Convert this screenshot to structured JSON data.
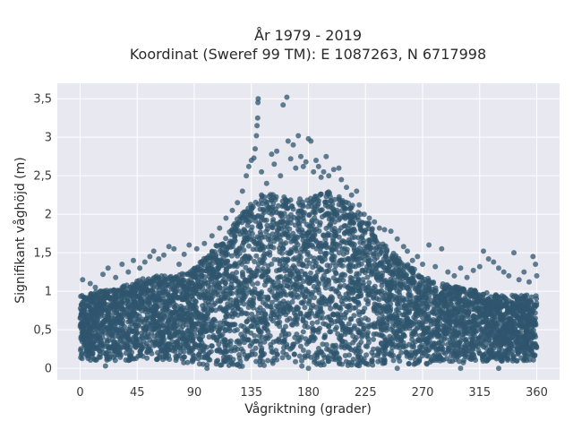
{
  "chart_data": {
    "type": "scatter",
    "title_line1": "År 1979 - 2019",
    "title_line2": "Koordinat (Sweref 99 TM): E 1087263, N 6717998",
    "xlabel": "Vågriktning (grader)",
    "ylabel": "Signifikant våghöjd (m)",
    "xlim": [
      -18,
      378
    ],
    "ylim": [
      -0.15,
      3.7
    ],
    "xticks": [
      0,
      45,
      90,
      135,
      180,
      225,
      270,
      315,
      360
    ],
    "xtick_labels": [
      "0",
      "45",
      "90",
      "135",
      "180",
      "225",
      "270",
      "315",
      "360"
    ],
    "yticks": [
      0,
      0.5,
      1,
      1.5,
      2,
      2.5,
      3,
      3.5
    ],
    "ytick_labels": [
      "0",
      "0,5",
      "1",
      "1,5",
      "2",
      "2,5",
      "3",
      "3,5"
    ],
    "grid": true,
    "legend": "none",
    "marker_color": "#2f566d",
    "plot_background": "#e8e8f0",
    "envelope": {
      "x": [
        0,
        15,
        30,
        45,
        60,
        75,
        90,
        105,
        120,
        135,
        150,
        165,
        180,
        195,
        210,
        225,
        240,
        255,
        270,
        285,
        300,
        315,
        330,
        345,
        360
      ],
      "upper": [
        0.95,
        1.0,
        1.05,
        1.15,
        1.2,
        1.2,
        1.3,
        1.55,
        1.85,
        2.2,
        2.3,
        2.2,
        2.2,
        2.3,
        2.2,
        1.95,
        1.6,
        1.4,
        1.2,
        1.1,
        1.05,
        1.0,
        0.95,
        0.95,
        0.95
      ],
      "lower": [
        0.1,
        0.1,
        0.1,
        0.1,
        0.1,
        0.08,
        0.05,
        0.02,
        0.02,
        0.02,
        0.02,
        0.02,
        0.02,
        0.02,
        0.02,
        0.03,
        0.05,
        0.05,
        0.05,
        0.06,
        0.07,
        0.08,
        0.08,
        0.09,
        0.1
      ]
    },
    "points": [
      [
        2,
        1.15
      ],
      [
        8,
        1.1
      ],
      [
        12,
        1.05
      ],
      [
        18,
        1.22
      ],
      [
        22,
        1.3
      ],
      [
        28,
        1.18
      ],
      [
        33,
        1.35
      ],
      [
        38,
        1.25
      ],
      [
        42,
        1.4
      ],
      [
        47,
        1.3
      ],
      [
        51,
        1.38
      ],
      [
        55,
        1.45
      ],
      [
        58,
        1.52
      ],
      [
        62,
        1.42
      ],
      [
        66,
        1.47
      ],
      [
        70,
        1.58
      ],
      [
        74,
        1.55
      ],
      [
        78,
        1.35
      ],
      [
        82,
        1.48
      ],
      [
        86,
        1.6
      ],
      [
        92,
        1.55
      ],
      [
        98,
        1.62
      ],
      [
        104,
        1.72
      ],
      [
        110,
        1.82
      ],
      [
        115,
        1.95
      ],
      [
        120,
        2.05
      ],
      [
        124,
        2.15
      ],
      [
        128,
        2.3
      ],
      [
        131,
        2.5
      ],
      [
        133,
        2.62
      ],
      [
        135,
        2.7
      ],
      [
        137,
        2.73
      ],
      [
        138,
        2.85
      ],
      [
        139,
        3.02
      ],
      [
        139.5,
        3.15
      ],
      [
        140,
        3.25
      ],
      [
        140.2,
        3.45
      ],
      [
        140.4,
        3.5
      ],
      [
        143,
        2.55
      ],
      [
        147,
        2.4
      ],
      [
        151,
        2.78
      ],
      [
        153,
        2.65
      ],
      [
        155,
        2.82
      ],
      [
        158,
        2.5
      ],
      [
        160,
        3.42
      ],
      [
        163,
        3.52
      ],
      [
        164,
        2.95
      ],
      [
        166,
        2.72
      ],
      [
        168,
        2.9
      ],
      [
        170,
        2.6
      ],
      [
        172,
        3.02
      ],
      [
        174,
        2.75
      ],
      [
        176,
        2.62
      ],
      [
        178,
        2.68
      ],
      [
        180,
        2.98
      ],
      [
        182,
        2.95
      ],
      [
        184,
        2.55
      ],
      [
        186,
        2.7
      ],
      [
        188,
        2.62
      ],
      [
        190,
        2.48
      ],
      [
        192,
        2.55
      ],
      [
        194,
        2.75
      ],
      [
        196,
        2.5
      ],
      [
        200,
        2.58
      ],
      [
        204,
        2.6
      ],
      [
        206,
        2.45
      ],
      [
        210,
        2.35
      ],
      [
        214,
        2.25
      ],
      [
        218,
        2.3
      ],
      [
        220,
        2.12
      ],
      [
        224,
        2.0
      ],
      [
        228,
        1.95
      ],
      [
        232,
        1.9
      ],
      [
        236,
        1.82
      ],
      [
        240,
        1.8
      ],
      [
        245,
        1.78
      ],
      [
        250,
        1.68
      ],
      [
        255,
        1.58
      ],
      [
        258,
        1.52
      ],
      [
        262,
        1.4
      ],
      [
        266,
        1.45
      ],
      [
        270,
        1.35
      ],
      [
        275,
        1.6
      ],
      [
        280,
        1.32
      ],
      [
        285,
        1.55
      ],
      [
        290,
        1.25
      ],
      [
        295,
        1.2
      ],
      [
        300,
        1.3
      ],
      [
        305,
        1.18
      ],
      [
        310,
        1.27
      ],
      [
        315,
        1.32
      ],
      [
        318,
        1.52
      ],
      [
        322,
        1.42
      ],
      [
        326,
        1.38
      ],
      [
        330,
        1.3
      ],
      [
        334,
        1.25
      ],
      [
        338,
        1.2
      ],
      [
        342,
        1.5
      ],
      [
        346,
        1.15
      ],
      [
        350,
        1.25
      ],
      [
        354,
        1.12
      ],
      [
        357,
        1.45
      ],
      [
        359,
        1.35
      ],
      [
        360,
        1.2
      ],
      [
        300,
        0.0
      ],
      [
        330,
        0.0
      ],
      [
        20,
        0.03
      ],
      [
        250,
        0.0
      ],
      [
        180,
        0.0
      ],
      [
        100,
        0.0
      ]
    ]
  }
}
